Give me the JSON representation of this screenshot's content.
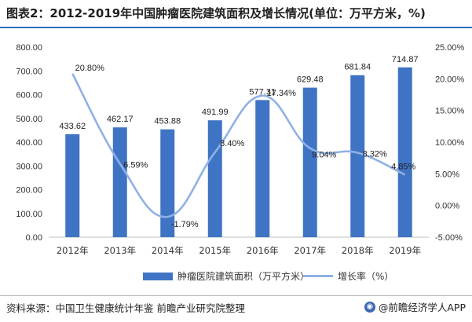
{
  "title": "图表2：2012-2019年中国肿瘤医院建筑面积及增长情况(单位：万平方米，%)",
  "source": "资料来源：中国卫生健康统计年鉴 前瞻产业研究院整理",
  "brand": "@前瞻经济学人APP",
  "colors": {
    "bar": "#3f74c4",
    "line": "#8fb1e6",
    "accent": "#2f6fb8"
  },
  "chart_data": {
    "type": "bar",
    "categories": [
      "2012年",
      "2013年",
      "2014年",
      "2015年",
      "2016年",
      "2017年",
      "2018年",
      "2019年"
    ],
    "series": [
      {
        "name": "肿瘤医院建筑面积（万平方米）",
        "type": "bar",
        "axis": "left",
        "values": [
          433.62,
          462.17,
          453.88,
          491.99,
          577.31,
          629.48,
          681.84,
          714.87
        ],
        "labels": [
          "433.62",
          "462.17",
          "453.88",
          "491.99",
          "577.31",
          "629.48",
          "681.84",
          "714.87"
        ]
      },
      {
        "name": "增长率（%）",
        "type": "line",
        "axis": "right",
        "values": [
          20.8,
          6.59,
          -1.79,
          8.4,
          17.34,
          9.04,
          8.32,
          4.85
        ],
        "labels": [
          "20.80%",
          "6.59%",
          "-1.79%",
          "8.40%",
          "17.34%",
          "9.04%",
          "8.32%",
          "4.85%"
        ]
      }
    ],
    "y_left": {
      "min": 0,
      "max": 800,
      "ticks": [
        "0.00",
        "100.00",
        "200.00",
        "300.00",
        "400.00",
        "500.00",
        "600.00",
        "700.00",
        "800.00"
      ]
    },
    "y_right": {
      "min": -5,
      "max": 25,
      "ticks": [
        "-5.00%",
        "0.00%",
        "5.00%",
        "10.00%",
        "15.00%",
        "20.00%",
        "25.00%"
      ]
    },
    "grid": false,
    "legend_position": "bottom"
  }
}
